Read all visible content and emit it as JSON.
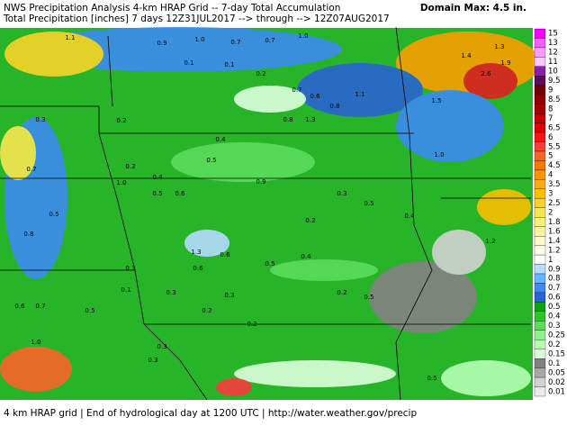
{
  "header": {
    "line1": "NWS Precipitation Analysis 4-km HRAP Grid -- 7-day Total Accumulation",
    "line2": "Total Precipitation [inches] 7 days 12Z31JUL2017 --> through --> 12Z07AUG2017",
    "domain_max": "Domain Max: 4.5 in."
  },
  "footer": "4 km HRAP grid | End of hydrological day at 1200 UTC | http://water.weather.gov/precip",
  "legend": {
    "items": [
      {
        "label": "15",
        "color": "#f700fe"
      },
      {
        "label": "13",
        "color": "#f85cfe"
      },
      {
        "label": "12",
        "color": "#f99cfe"
      },
      {
        "label": "11",
        "color": "#fbc8fe"
      },
      {
        "label": "10",
        "color": "#8a1fa8"
      },
      {
        "label": "9.5",
        "color": "#5c0a5c"
      },
      {
        "label": "9",
        "color": "#700000"
      },
      {
        "label": "8.5",
        "color": "#8c0000"
      },
      {
        "label": "8",
        "color": "#a80000"
      },
      {
        "label": "7",
        "color": "#c40000"
      },
      {
        "label": "6.5",
        "color": "#e00000"
      },
      {
        "label": "6",
        "color": "#f81414"
      },
      {
        "label": "5.5",
        "color": "#f83c3c"
      },
      {
        "label": "5",
        "color": "#f86428"
      },
      {
        "label": "4.5",
        "color": "#f87800"
      },
      {
        "label": "4",
        "color": "#f89600"
      },
      {
        "label": "3.5",
        "color": "#f8aa14"
      },
      {
        "label": "3",
        "color": "#f8c000"
      },
      {
        "label": "2.5",
        "color": "#f8d428"
      },
      {
        "label": "2",
        "color": "#f8e650"
      },
      {
        "label": "1.8",
        "color": "#f8f078"
      },
      {
        "label": "1.6",
        "color": "#fcf4a0"
      },
      {
        "label": "1.4",
        "color": "#fff8c8"
      },
      {
        "label": "1.2",
        "color": "#fffce6"
      },
      {
        "label": "1",
        "color": "#ffffff"
      },
      {
        "label": "0.9",
        "color": "#b4dcff"
      },
      {
        "label": "0.8",
        "color": "#64b4ff"
      },
      {
        "label": "0.7",
        "color": "#3c8cf0"
      },
      {
        "label": "0.6",
        "color": "#2864d2"
      },
      {
        "label": "0.5",
        "color": "#10a010"
      },
      {
        "label": "0.4",
        "color": "#28c828"
      },
      {
        "label": "0.3",
        "color": "#5adc5a"
      },
      {
        "label": "0.25",
        "color": "#8cf08c"
      },
      {
        "label": "0.2",
        "color": "#b4ffb4"
      },
      {
        "label": "0.15",
        "color": "#dcffdc"
      },
      {
        "label": "0.1",
        "color": "#828282"
      },
      {
        "label": "0.05",
        "color": "#a8a8a8"
      },
      {
        "label": "0.02",
        "color": "#d2d2d2"
      },
      {
        "label": "0.01",
        "color": "#ebebeb"
      }
    ]
  },
  "map_labels": [
    "1.1",
    "0.9",
    "1.0",
    "0.7",
    "0.7",
    "1.0",
    "1.3",
    "1.4",
    "1.9",
    "2.6",
    "0.1",
    "0.1",
    "0.2",
    "0.7",
    "0.6",
    "0.8",
    "1.1",
    "1.5",
    "1.3",
    "0.8",
    "0.2",
    "0.3",
    "0.4",
    "1.0",
    "0.7",
    "0.2",
    "0.5",
    "0.4",
    "1.0",
    "0.9",
    "0.3",
    "0.5",
    "0.2",
    "0.6",
    "0.5",
    "0.5",
    "0.8",
    "0.4",
    "1.2",
    "1.3",
    "0.6",
    "0.6",
    "0.4",
    "0.5",
    "0.3",
    "0.1",
    "0.3",
    "0.3",
    "0.2",
    "0.5",
    "0.6",
    "0.7",
    "0.5",
    "0.2",
    "0.2",
    "1.0",
    "0.3",
    "0.3",
    "0.5"
  ]
}
